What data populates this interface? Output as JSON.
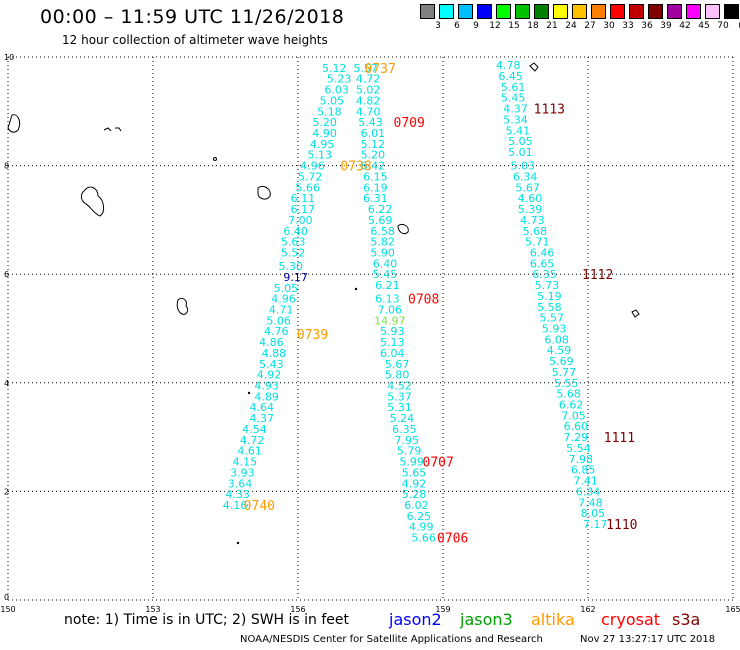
{
  "header": {
    "title": "00:00 – 11:59 UTC 11/26/2018",
    "subtitle": "12 hour collection of altimeter wave heights"
  },
  "colorbar": {
    "unit": "(ft)",
    "colors": [
      "#808080",
      "#00ffff",
      "#00bfff",
      "#0000ff",
      "#00ff00",
      "#00c000",
      "#008000",
      "#ffff00",
      "#ffc000",
      "#ff8000",
      "#ff0000",
      "#c00000",
      "#800000",
      "#a000a0",
      "#ff00ff",
      "#ffc0ff",
      "#000000"
    ],
    "labels": [
      "3",
      "6",
      "9",
      "12",
      "15",
      "18",
      "21",
      "24",
      "27",
      "30",
      "33",
      "36",
      "39",
      "42",
      "45",
      "70"
    ]
  },
  "note": "note: 1) Time is in UTC; 2) SWH is in feet",
  "legend": [
    {
      "name": "jason2",
      "color": "#0000ff"
    },
    {
      "name": "jason3",
      "color": "#00a000"
    },
    {
      "name": "altika",
      "color": "#ff9900"
    },
    {
      "name": "cryosat",
      "color": "#ff0000"
    },
    {
      "name": "s3a",
      "color": "#800000"
    }
  ],
  "footer": {
    "credit": "NOAA/NESDIS Center for Satellite Applications and Research",
    "timestamp": "Nov 27 13:27:17 UTC 2018"
  },
  "chart_data": {
    "type": "scatter",
    "xlim": [
      150,
      165
    ],
    "ylim": [
      0,
      10
    ],
    "x_ticks": [
      "150",
      "153",
      "156",
      "159",
      "162",
      "165"
    ],
    "y_ticks": [
      "0",
      "2",
      "4",
      "6",
      "8",
      "10"
    ],
    "grid": true,
    "series": [
      {
        "color": "#00e0e0",
        "points": [
          [
            156.75,
            9.8,
            "5.12"
          ],
          [
            156.85,
            9.6,
            "5.23"
          ],
          [
            156.8,
            9.4,
            "6.03"
          ],
          [
            156.7,
            9.2,
            "5.05"
          ],
          [
            156.65,
            9.0,
            "5.18"
          ],
          [
            156.55,
            8.8,
            "5.20"
          ],
          [
            156.55,
            8.6,
            "4.90"
          ],
          [
            156.5,
            8.4,
            "4.95"
          ],
          [
            156.45,
            8.2,
            "5.13"
          ],
          [
            156.3,
            8.0,
            "4.96"
          ],
          [
            156.25,
            7.8,
            "5.72"
          ],
          [
            156.2,
            7.6,
            "5.66"
          ],
          [
            156.1,
            7.4,
            "6.11"
          ],
          [
            156.1,
            7.2,
            "6.17"
          ],
          [
            156.05,
            7.0,
            "7.00"
          ],
          [
            155.95,
            6.8,
            "6.40"
          ],
          [
            155.9,
            6.6,
            "5.63"
          ],
          [
            155.9,
            6.4,
            "5.52"
          ],
          [
            155.85,
            6.15,
            "5.30"
          ],
          [
            155.75,
            5.75,
            "5.05"
          ],
          [
            155.7,
            5.55,
            "4.96"
          ],
          [
            155.65,
            5.35,
            "4.71"
          ],
          [
            155.6,
            5.15,
            "5.06"
          ],
          [
            155.55,
            4.95,
            "4.76"
          ],
          [
            155.45,
            4.75,
            "4.86"
          ],
          [
            155.5,
            4.55,
            "4.88"
          ],
          [
            155.45,
            4.35,
            "5.43"
          ],
          [
            155.4,
            4.15,
            "4.92"
          ],
          [
            155.35,
            3.95,
            "4.93"
          ],
          [
            155.35,
            3.75,
            "4.89"
          ],
          [
            155.25,
            3.55,
            "4.64"
          ],
          [
            155.25,
            3.35,
            "4.37"
          ],
          [
            155.1,
            3.15,
            "4.54"
          ],
          [
            155.05,
            2.95,
            "4.72"
          ],
          [
            155.0,
            2.75,
            "4.61"
          ],
          [
            154.9,
            2.55,
            "4.15"
          ],
          [
            154.85,
            2.35,
            "3.93"
          ],
          [
            154.8,
            2.15,
            "3.64"
          ],
          [
            154.75,
            1.95,
            "4.33"
          ],
          [
            154.7,
            1.75,
            "4.16"
          ],
          [
            157.4,
            9.8,
            "5.57"
          ],
          [
            157.45,
            9.6,
            "4.72"
          ],
          [
            157.45,
            9.4,
            "5.02"
          ],
          [
            157.45,
            9.2,
            "4.82"
          ],
          [
            157.45,
            9.0,
            "4.70"
          ],
          [
            157.5,
            8.8,
            "5.43"
          ],
          [
            157.55,
            8.6,
            "6.01"
          ],
          [
            157.55,
            8.4,
            "5.12"
          ],
          [
            157.55,
            8.2,
            "5.20"
          ],
          [
            157.55,
            8.0,
            "6.42"
          ],
          [
            157.6,
            7.8,
            "6.15"
          ],
          [
            157.6,
            7.6,
            "6.19"
          ],
          [
            157.6,
            7.4,
            "6.31"
          ],
          [
            157.7,
            7.2,
            "6.22"
          ],
          [
            157.7,
            7.0,
            "5.69"
          ],
          [
            157.75,
            6.8,
            "6.58"
          ],
          [
            157.75,
            6.6,
            "5.82"
          ],
          [
            157.75,
            6.4,
            "5.90"
          ],
          [
            157.8,
            6.2,
            "6.40"
          ],
          [
            157.8,
            6.0,
            "5.45"
          ],
          [
            157.85,
            5.8,
            "6.21"
          ],
          [
            157.85,
            5.55,
            "6.13"
          ],
          [
            157.9,
            5.35,
            "7.06"
          ],
          [
            157.95,
            4.95,
            "5.93"
          ],
          [
            157.95,
            4.75,
            "5.13"
          ],
          [
            157.95,
            4.55,
            "6.04"
          ],
          [
            158.05,
            4.35,
            "5.67"
          ],
          [
            158.05,
            4.15,
            "5.80"
          ],
          [
            158.1,
            3.95,
            "4.52"
          ],
          [
            158.1,
            3.75,
            "5.37"
          ],
          [
            158.1,
            3.55,
            "5.31"
          ],
          [
            158.15,
            3.35,
            "5.24"
          ],
          [
            158.2,
            3.15,
            "6.35"
          ],
          [
            158.25,
            2.95,
            "7.95"
          ],
          [
            158.3,
            2.75,
            "5.79"
          ],
          [
            158.35,
            2.55,
            "5.99"
          ],
          [
            158.4,
            2.35,
            "5.65"
          ],
          [
            158.4,
            2.15,
            "4.92"
          ],
          [
            158.4,
            1.95,
            "5.28"
          ],
          [
            158.45,
            1.75,
            "6.02"
          ],
          [
            158.5,
            1.55,
            "6.25"
          ],
          [
            158.55,
            1.35,
            "4.99"
          ],
          [
            158.6,
            1.15,
            "5.66"
          ],
          [
            160.35,
            9.85,
            "4.78"
          ],
          [
            160.4,
            9.65,
            "6.45"
          ],
          [
            160.45,
            9.45,
            "5.61"
          ],
          [
            160.45,
            9.25,
            "5.45"
          ],
          [
            160.5,
            9.05,
            "4.37"
          ],
          [
            160.5,
            8.85,
            "5.34"
          ],
          [
            160.55,
            8.65,
            "5.41"
          ],
          [
            160.6,
            8.45,
            "5.05"
          ],
          [
            160.6,
            8.25,
            "5.01"
          ],
          [
            160.65,
            8.0,
            "5.03"
          ],
          [
            160.7,
            7.8,
            "6.34"
          ],
          [
            160.75,
            7.6,
            "5.67"
          ],
          [
            160.8,
            7.4,
            "4.60"
          ],
          [
            160.8,
            7.2,
            "5.39"
          ],
          [
            160.85,
            7.0,
            "4.73"
          ],
          [
            160.9,
            6.8,
            "5.68"
          ],
          [
            160.95,
            6.6,
            "5.71"
          ],
          [
            161.05,
            6.4,
            "6.46"
          ],
          [
            161.05,
            6.2,
            "6.65"
          ],
          [
            161.1,
            6.0,
            "6.35"
          ],
          [
            161.15,
            5.8,
            "5.73"
          ],
          [
            161.2,
            5.6,
            "5.19"
          ],
          [
            161.2,
            5.4,
            "5.58"
          ],
          [
            161.25,
            5.2,
            "5.57"
          ],
          [
            161.3,
            5.0,
            "5.93"
          ],
          [
            161.35,
            4.8,
            "6.08"
          ],
          [
            161.4,
            4.6,
            "4.59"
          ],
          [
            161.45,
            4.4,
            "5.69"
          ],
          [
            161.5,
            4.2,
            "5.77"
          ],
          [
            161.55,
            4.0,
            "5.55"
          ],
          [
            161.6,
            3.8,
            "5.68"
          ],
          [
            161.65,
            3.6,
            "6.62"
          ],
          [
            161.7,
            3.4,
            "7.05"
          ],
          [
            161.75,
            3.2,
            "6.60"
          ],
          [
            161.75,
            3.0,
            "7.29"
          ],
          [
            161.8,
            2.8,
            "5.54"
          ],
          [
            161.85,
            2.6,
            "7.98"
          ],
          [
            161.9,
            2.4,
            "6.85"
          ],
          [
            161.95,
            2.2,
            "7.41"
          ],
          [
            162.0,
            2.0,
            "6.34"
          ],
          [
            162.05,
            1.8,
            "7.48"
          ],
          [
            162.1,
            1.6,
            "8.05"
          ],
          [
            162.15,
            1.4,
            "7.17"
          ]
        ]
      },
      {
        "color": "#0000a0",
        "points": [
          [
            155.95,
            5.95,
            "9.17"
          ]
        ]
      },
      {
        "color": "#80e040",
        "points": [
          [
            157.9,
            5.15,
            "14.97"
          ]
        ]
      }
    ],
    "pass_labels": [
      {
        "x": 157.7,
        "y": 9.8,
        "text": "0737",
        "color": "#ff9900"
      },
      {
        "x": 157.2,
        "y": 8.0,
        "text": "0738",
        "color": "#ff9900"
      },
      {
        "x": 156.3,
        "y": 4.9,
        "text": "0739",
        "color": "#ff9900"
      },
      {
        "x": 155.2,
        "y": 1.75,
        "text": "0740",
        "color": "#ff9900"
      },
      {
        "x": 158.3,
        "y": 8.8,
        "text": "0709",
        "color": "#ff0000"
      },
      {
        "x": 158.6,
        "y": 5.55,
        "text": "0708",
        "color": "#ff0000"
      },
      {
        "x": 158.9,
        "y": 2.55,
        "text": "0707",
        "color": "#ff0000"
      },
      {
        "x": 159.2,
        "y": 1.15,
        "text": "0706",
        "color": "#ff0000"
      },
      {
        "x": 161.2,
        "y": 9.05,
        "text": "1113",
        "color": "#800000"
      },
      {
        "x": 162.2,
        "y": 6.0,
        "text": "1112",
        "color": "#800000"
      },
      {
        "x": 162.65,
        "y": 3.0,
        "text": "1111",
        "color": "#800000"
      },
      {
        "x": 162.7,
        "y": 1.4,
        "text": "1110",
        "color": "#800000"
      }
    ]
  }
}
